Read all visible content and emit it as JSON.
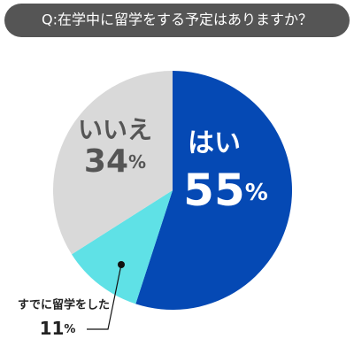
{
  "chart_data": {
    "type": "pie",
    "title": "Q:在学中に留学をする予定はありますか？",
    "categories": [
      "はい",
      "すでに留学をした",
      "いいえ"
    ],
    "values": [
      55,
      11,
      34
    ],
    "value_labels": [
      "55%",
      "11%",
      "34%"
    ],
    "colors": [
      "#0549b4",
      "#5fe1e6",
      "#d9d9d9"
    ]
  }
}
